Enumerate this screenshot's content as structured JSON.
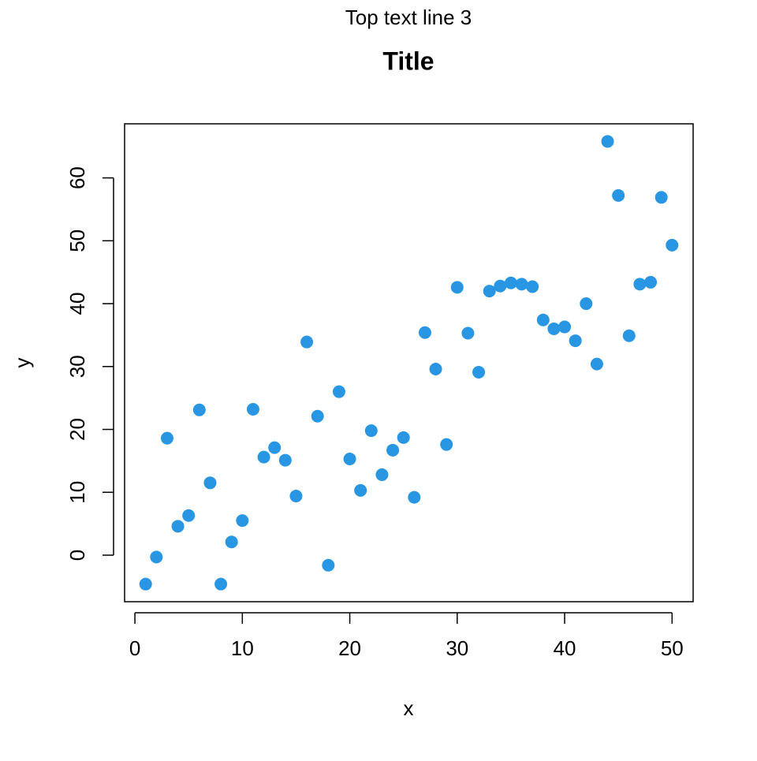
{
  "chart_data": {
    "type": "scatter",
    "top_text": "Top text line 3",
    "title": "Title",
    "x_label": "x",
    "y_label": "y",
    "color": "#2896e3",
    "x": [
      1,
      2,
      3,
      4,
      5,
      6,
      7,
      8,
      9,
      10,
      11,
      12,
      13,
      14,
      15,
      16,
      17,
      18,
      19,
      20,
      21,
      22,
      23,
      24,
      25,
      26,
      27,
      28,
      29,
      30,
      31,
      32,
      33,
      34,
      35,
      36,
      37,
      38,
      39,
      40,
      41,
      42,
      43,
      44,
      45,
      46,
      47,
      48,
      49,
      50
    ],
    "values": [
      -4.6,
      -0.3,
      18.6,
      4.6,
      6.3,
      23.1,
      11.5,
      -4.6,
      2.1,
      5.5,
      23.2,
      15.6,
      17.1,
      15.1,
      9.4,
      33.9,
      22.1,
      -1.6,
      26.0,
      15.3,
      10.3,
      19.8,
      12.8,
      16.7,
      18.7,
      9.2,
      35.4,
      29.6,
      17.6,
      42.6,
      35.3,
      29.1,
      42.0,
      42.8,
      43.3,
      43.1,
      42.7,
      37.4,
      36.0,
      36.3,
      34.1,
      40.0,
      30.4,
      65.8,
      57.2,
      34.9,
      43.1,
      43.4,
      56.9,
      49.3
    ],
    "xlim": [
      -0.96,
      51.96
    ],
    "ylim": [
      -7.4,
      68.6
    ],
    "xticks": [
      0,
      10,
      20,
      30,
      40,
      50
    ],
    "yticks": [
      0,
      10,
      20,
      30,
      40,
      50,
      60
    ]
  }
}
